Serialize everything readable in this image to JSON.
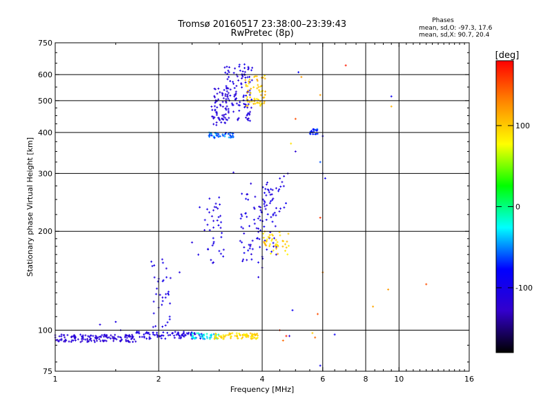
{
  "chart_data": {
    "type": "scatter",
    "title": "Tromsø 20160517 23:38:00–23:39:43",
    "subtitle": "RwPretec (8p)",
    "xlabel": "Frequency [MHz]",
    "ylabel": "Stationary phase Virtual Height [km]",
    "x_scale": "log",
    "y_scale": "log",
    "xlim": [
      1,
      16
    ],
    "ylim": [
      75,
      750
    ],
    "x_ticks": [
      1,
      2,
      4,
      6,
      8,
      10,
      16
    ],
    "y_ticks": [
      75,
      100,
      200,
      300,
      400,
      500,
      600,
      750
    ],
    "grid": true,
    "stats_title": "Phases",
    "stats": [
      "mean, sd,O: -97.3, 17.6",
      "mean, sd,X:  90.7, 20.4"
    ],
    "colorbar": {
      "label": "[deg]",
      "range": [
        -180,
        180
      ],
      "ticks": [
        100,
        0,
        -100
      ],
      "colors": [
        "#ff0000",
        "#ff8800",
        "#ffff00",
        "#00ff00",
        "#00ffff",
        "#0000ff",
        "#3300cc",
        "#000000"
      ]
    },
    "clusters": [
      {
        "x": [
          1.0,
          1.72
        ],
        "y": [
          92,
          97
        ],
        "phase": [
          -130,
          -105
        ],
        "n": 140
      },
      {
        "x": [
          1.72,
          2.7
        ],
        "y": [
          94,
          99
        ],
        "phase": [
          -115,
          -100
        ],
        "n": 90
      },
      {
        "x": [
          2.5,
          3.0
        ],
        "y": [
          94,
          98
        ],
        "phase": [
          -50,
          -10
        ],
        "n": 40
      },
      {
        "x": [
          2.9,
          3.9
        ],
        "y": [
          94,
          98
        ],
        "phase": [
          80,
          110
        ],
        "n": 80
      },
      {
        "x": [
          1.9,
          2.2
        ],
        "y": [
          100,
          165
        ],
        "phase": [
          -115,
          -95
        ],
        "n": 35
      },
      {
        "x": [
          2.6,
          3.1
        ],
        "y": [
          160,
          255
        ],
        "phase": [
          -115,
          -95
        ],
        "n": 40
      },
      {
        "x": [
          2.8,
          3.3
        ],
        "y": [
          385,
          400
        ],
        "phase": [
          -75,
          -40
        ],
        "n": 45
      },
      {
        "x": [
          2.85,
          3.2
        ],
        "y": [
          420,
          550
        ],
        "phase": [
          -125,
          -105
        ],
        "n": 70
      },
      {
        "x": [
          3.1,
          3.75
        ],
        "y": [
          430,
          650
        ],
        "phase": [
          -120,
          -95
        ],
        "n": 110
      },
      {
        "x": [
          3.55,
          4.1
        ],
        "y": [
          480,
          600
        ],
        "phase": [
          85,
          115
        ],
        "n": 60
      },
      {
        "x": [
          3.45,
          4.4
        ],
        "y": [
          160,
          280
        ],
        "phase": [
          -120,
          -90
        ],
        "n": 90
      },
      {
        "x": [
          4.0,
          4.8
        ],
        "y": [
          170,
          200
        ],
        "phase": [
          80,
          115
        ],
        "n": 45
      },
      {
        "x": [
          4.1,
          4.8
        ],
        "y": [
          220,
          300
        ],
        "phase": [
          -120,
          -90
        ],
        "n": 25
      },
      {
        "x": [
          5.5,
          5.8
        ],
        "y": [
          395,
          410
        ],
        "phase": [
          -85,
          -60
        ],
        "n": 25
      }
    ],
    "points": [
      {
        "x": 7.0,
        "y": 640,
        "phase": 170
      },
      {
        "x": 9.5,
        "y": 515,
        "phase": -90
      },
      {
        "x": 9.5,
        "y": 480,
        "phase": 110
      },
      {
        "x": 12.0,
        "y": 138,
        "phase": 150
      },
      {
        "x": 9.3,
        "y": 133,
        "phase": 120
      },
      {
        "x": 8.4,
        "y": 118,
        "phase": 115
      },
      {
        "x": 6.5,
        "y": 97,
        "phase": -90
      },
      {
        "x": 5.9,
        "y": 520,
        "phase": 120
      },
      {
        "x": 5.9,
        "y": 325,
        "phase": -60
      },
      {
        "x": 6.0,
        "y": 300,
        "phase": -80
      },
      {
        "x": 6.1,
        "y": 290,
        "phase": -90
      },
      {
        "x": 5.9,
        "y": 220,
        "phase": 160
      },
      {
        "x": 6.0,
        "y": 150,
        "phase": 130
      },
      {
        "x": 5.8,
        "y": 112,
        "phase": 150
      },
      {
        "x": 5.6,
        "y": 98,
        "phase": 100
      },
      {
        "x": 5.7,
        "y": 95,
        "phase": 140
      },
      {
        "x": 5.9,
        "y": 78,
        "phase": -90
      },
      {
        "x": 6.0,
        "y": 390,
        "phase": -90
      },
      {
        "x": 5.1,
        "y": 610,
        "phase": -80
      },
      {
        "x": 5.2,
        "y": 590,
        "phase": 120
      },
      {
        "x": 5.0,
        "y": 440,
        "phase": 150
      },
      {
        "x": 4.85,
        "y": 370,
        "phase": 90
      },
      {
        "x": 5.0,
        "y": 350,
        "phase": -120
      },
      {
        "x": 4.9,
        "y": 115,
        "phase": -90
      },
      {
        "x": 4.5,
        "y": 100,
        "phase": 160
      },
      {
        "x": 4.7,
        "y": 96,
        "phase": 170
      },
      {
        "x": 4.8,
        "y": 96,
        "phase": -120
      },
      {
        "x": 4.6,
        "y": 93,
        "phase": 140
      },
      {
        "x": 3.3,
        "y": 302,
        "phase": -110
      },
      {
        "x": 2.3,
        "y": 150,
        "phase": -110
      },
      {
        "x": 2.5,
        "y": 185,
        "phase": -110
      },
      {
        "x": 1.35,
        "y": 104,
        "phase": -110
      },
      {
        "x": 1.5,
        "y": 106,
        "phase": -105
      },
      {
        "x": 1.55,
        "y": 100,
        "phase": -105
      },
      {
        "x": 4.0,
        "y": 155,
        "phase": -120
      },
      {
        "x": 3.9,
        "y": 145,
        "phase": -110
      },
      {
        "x": 4.0,
        "y": 100,
        "phase": -90
      }
    ]
  }
}
